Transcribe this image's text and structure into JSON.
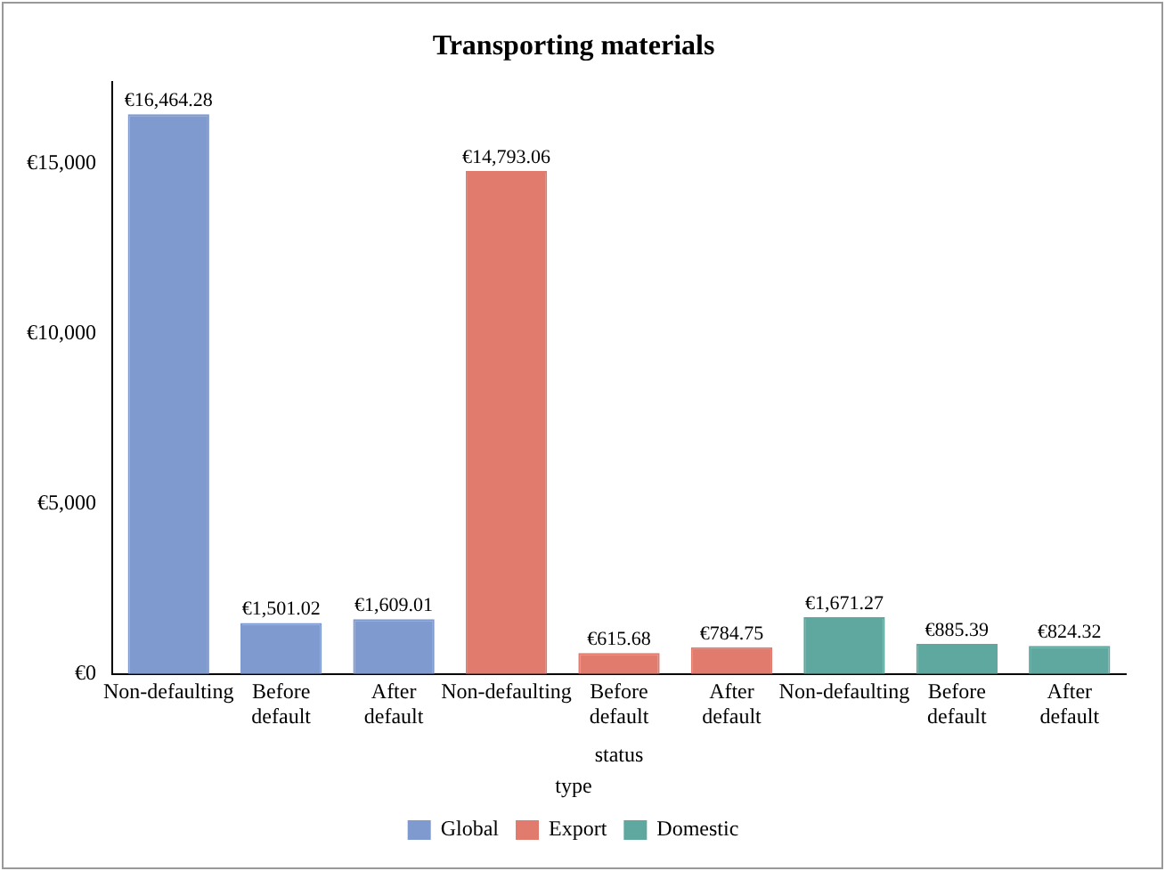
{
  "chart_data": {
    "type": "bar",
    "title": "Transporting materials",
    "xlabel": "status",
    "legend_title": "type",
    "legend": "bottom",
    "categories": [
      "Non-defaulting",
      "Before default",
      "After default",
      "Non-defaulting",
      "Before default",
      "After default",
      "Non-defaulting",
      "Before default",
      "After default"
    ],
    "series": [
      {
        "name": "Global",
        "color": "#7f9acf",
        "values": [
          16464.28,
          1501.02,
          1609.01,
          null,
          null,
          null,
          null,
          null,
          null
        ],
        "value_labels": [
          "€16,464.28",
          "€1,501.02",
          "€1,609.01",
          null,
          null,
          null,
          null,
          null,
          null
        ]
      },
      {
        "name": "Export",
        "color": "#e07b6d",
        "values": [
          null,
          null,
          null,
          14793.06,
          615.68,
          784.75,
          null,
          null,
          null
        ],
        "value_labels": [
          null,
          null,
          null,
          "€14,793.06",
          "€615.68",
          "€784.75",
          null,
          null,
          null
        ]
      },
      {
        "name": "Domestic",
        "color": "#5fa8a0",
        "values": [
          null,
          null,
          null,
          null,
          null,
          null,
          1671.27,
          885.39,
          824.32
        ],
        "value_labels": [
          null,
          null,
          null,
          null,
          null,
          null,
          "€1,671.27",
          "€885.39",
          "€824.32"
        ]
      }
    ],
    "ylim": [
      0,
      17400
    ],
    "yticks": [
      {
        "value": 0,
        "label": "€0"
      },
      {
        "value": 5000,
        "label": "€5,000"
      },
      {
        "value": 10000,
        "label": "€10,000"
      },
      {
        "value": 15000,
        "label": "€15,000"
      }
    ],
    "grid": false
  }
}
